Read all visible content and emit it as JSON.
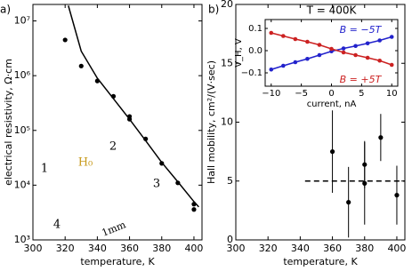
{
  "chart_data": [
    {
      "type": "scatter",
      "panel_label": "a)",
      "xlabel": "temperature, K",
      "ylabel": "electrical resistivity, Ω·cm",
      "log_y": true,
      "xlim": [
        300,
        405
      ],
      "ylim": [
        1000,
        20000000
      ],
      "xticks": [
        300,
        320,
        340,
        360,
        380,
        400
      ],
      "yticks": [
        {
          "value": 1000,
          "label": "10³"
        },
        {
          "value": 10000,
          "label": "10⁴"
        },
        {
          "value": 100000,
          "label": "10⁵"
        },
        {
          "value": 1000000,
          "label": "10⁶"
        },
        {
          "value": 10000000,
          "label": "10⁷"
        }
      ],
      "annotations": [
        "H₀",
        "1",
        "2",
        "3",
        "4",
        "1mm"
      ],
      "series": [
        {
          "mode": "markers",
          "color": "#000000",
          "x": [
            320,
            330,
            340,
            350,
            360,
            360,
            370,
            380,
            390,
            400,
            400
          ],
          "values": [
            4500000,
            1500000,
            800000,
            420000,
            180000,
            160000,
            70000,
            25000,
            11000,
            4500,
            3600
          ]
        },
        {
          "mode": "line",
          "color": "#000000",
          "x": [
            322,
            330,
            340,
            350,
            360,
            370,
            380,
            390,
            400,
            403
          ],
          "values": [
            19000000,
            2800000,
            900000,
            380000,
            160000,
            65000,
            26000,
            11500,
            5000,
            4000
          ]
        }
      ]
    },
    {
      "type": "scatter",
      "panel_label": "b)",
      "xlabel": "temperature, K",
      "ylabel": "Hall mobility, cm²/(V·sec)",
      "xlim": [
        300,
        405
      ],
      "ylim": [
        0,
        20
      ],
      "xticks": [
        300,
        320,
        340,
        360,
        380,
        400
      ],
      "yticks": [
        0,
        5,
        10,
        15,
        20
      ],
      "series": [
        {
          "mode": "markers",
          "color": "#000000",
          "x": [
            360,
            370,
            380,
            380,
            390,
            400
          ],
          "values": [
            7.5,
            3.2,
            6.4,
            4.8,
            8.7,
            3.8
          ],
          "errors": [
            3.5,
            3.0,
            2.0,
            3.5,
            2.0,
            2.5
          ]
        },
        {
          "mode": "dashed",
          "color": "#000000",
          "x": [
            343,
            405
          ],
          "values": [
            5,
            5
          ]
        }
      ]
    },
    {
      "type": "line",
      "title": "T = 400K",
      "xlabel": "current, nA",
      "ylabel": "V_H, V",
      "xlim": [
        -11,
        11
      ],
      "ylim": [
        -0.16,
        0.14
      ],
      "xticks": [
        {
          "value": -10,
          "label": "−10"
        },
        {
          "value": -5,
          "label": "−5"
        },
        0,
        5,
        10
      ],
      "yticks": [
        {
          "value": -0.1,
          "label": "−0.1"
        },
        {
          "value": 0,
          "label": "0.0"
        },
        0.1
      ],
      "series": [
        {
          "name": "B = −5T",
          "mode": "markers+line",
          "color": "#2222cc",
          "x": [
            -10,
            -8,
            -6,
            -4,
            -2,
            0,
            2,
            4,
            6,
            8,
            10
          ],
          "values": [
            -0.085,
            -0.068,
            -0.052,
            -0.037,
            -0.02,
            -0.003,
            0.01,
            0.021,
            0.033,
            0.046,
            0.062
          ]
        },
        {
          "name": "B = +5T",
          "mode": "markers+line",
          "color": "#cc2222",
          "x": [
            -10,
            -8,
            -6,
            -4,
            -2,
            0,
            2,
            4,
            6,
            8,
            10
          ],
          "values": [
            0.08,
            0.066,
            0.052,
            0.04,
            0.026,
            0.008,
            -0.008,
            -0.02,
            -0.032,
            -0.045,
            -0.064
          ]
        }
      ]
    }
  ]
}
